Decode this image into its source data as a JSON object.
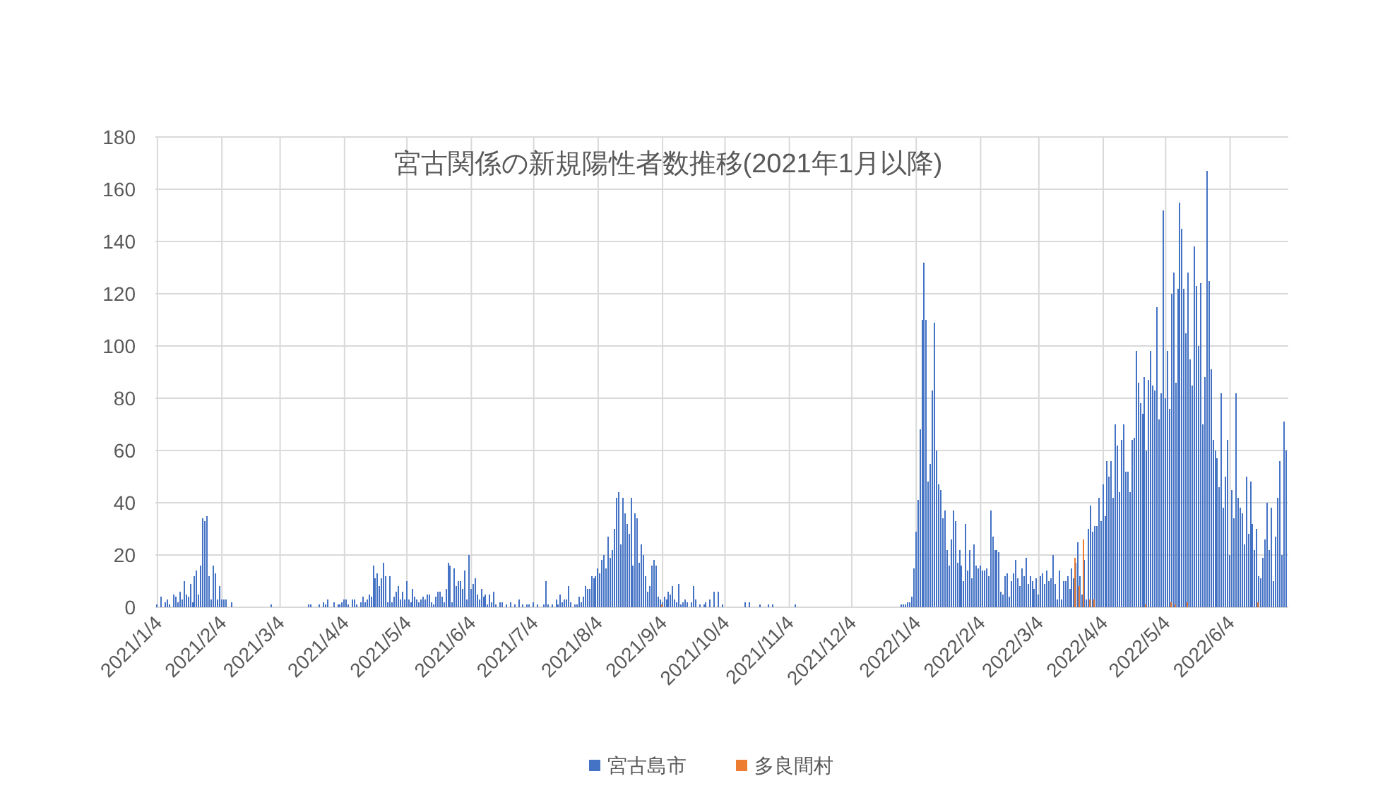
{
  "chart_data": {
    "type": "bar",
    "title": "宮古関係の新規陽性者数推移(2021年1月以降)",
    "xlim": [
      "2021-01-03",
      "2022-07-02"
    ],
    "xticks": [
      {
        "value": "2021-01-04",
        "label": "2021/1/4"
      },
      {
        "value": "2021-02-04",
        "label": "2021/2/4"
      },
      {
        "value": "2021-03-04",
        "label": "2021/3/4"
      },
      {
        "value": "2021-04-04",
        "label": "2021/4/4"
      },
      {
        "value": "2021-05-04",
        "label": "2021/5/4"
      },
      {
        "value": "2021-06-04",
        "label": "2021/6/4"
      },
      {
        "value": "2021-07-04",
        "label": "2021/7/4"
      },
      {
        "value": "2021-08-04",
        "label": "2021/8/4"
      },
      {
        "value": "2021-09-04",
        "label": "2021/9/4"
      },
      {
        "value": "2021-10-04",
        "label": "2021/10/4"
      },
      {
        "value": "2021-11-04",
        "label": "2021/11/4"
      },
      {
        "value": "2021-12-04",
        "label": "2021/12/4"
      },
      {
        "value": "2022-01-04",
        "label": "2022/1/4"
      },
      {
        "value": "2022-02-04",
        "label": "2022/2/4"
      },
      {
        "value": "2022-03-04",
        "label": "2022/3/4"
      },
      {
        "value": "2022-04-04",
        "label": "2022/4/4"
      },
      {
        "value": "2022-05-04",
        "label": "2022/5/4"
      },
      {
        "value": "2022-06-04",
        "label": "2022/6/4"
      }
    ],
    "ylim": [
      0,
      180
    ],
    "yticks": [
      0,
      20,
      40,
      60,
      80,
      100,
      120,
      140,
      160,
      180
    ],
    "grid": true,
    "legend": "bottom",
    "series": [
      {
        "name": "宮古島市",
        "color": "#4472c4",
        "x": [
          "2021-01-04",
          "2021-01-06",
          "2021-01-08",
          "2021-01-09",
          "2021-01-10",
          "2021-01-12",
          "2021-01-13",
          "2021-01-14",
          "2021-01-15",
          "2021-01-16",
          "2021-01-17",
          "2021-01-18",
          "2021-01-19",
          "2021-01-20",
          "2021-01-21",
          "2021-01-22",
          "2021-01-23",
          "2021-01-24",
          "2021-01-25",
          "2021-01-26",
          "2021-01-27",
          "2021-01-28",
          "2021-01-29",
          "2021-01-30",
          "2021-01-31",
          "2021-02-01",
          "2021-02-02",
          "2021-02-03",
          "2021-02-04",
          "2021-02-05",
          "2021-02-06",
          "2021-02-09",
          "2021-02-28",
          "2021-03-18",
          "2021-03-19",
          "2021-03-23",
          "2021-03-25",
          "2021-03-26",
          "2021-03-27",
          "2021-03-30",
          "2021-04-01",
          "2021-04-02",
          "2021-04-03",
          "2021-04-04",
          "2021-04-05",
          "2021-04-06",
          "2021-04-08",
          "2021-04-09",
          "2021-04-10",
          "2021-04-12",
          "2021-04-13",
          "2021-04-14",
          "2021-04-15",
          "2021-04-16",
          "2021-04-17",
          "2021-04-18",
          "2021-04-19",
          "2021-04-20",
          "2021-04-21",
          "2021-04-22",
          "2021-04-23",
          "2021-04-24",
          "2021-04-25",
          "2021-04-26",
          "2021-04-27",
          "2021-04-28",
          "2021-04-29",
          "2021-04-30",
          "2021-05-01",
          "2021-05-02",
          "2021-05-03",
          "2021-05-04",
          "2021-05-05",
          "2021-05-06",
          "2021-05-07",
          "2021-05-08",
          "2021-05-09",
          "2021-05-10",
          "2021-05-11",
          "2021-05-12",
          "2021-05-13",
          "2021-05-14",
          "2021-05-15",
          "2021-05-16",
          "2021-05-17",
          "2021-05-18",
          "2021-05-19",
          "2021-05-20",
          "2021-05-21",
          "2021-05-22",
          "2021-05-23",
          "2021-05-24",
          "2021-05-25",
          "2021-05-26",
          "2021-05-27",
          "2021-05-28",
          "2021-05-29",
          "2021-05-30",
          "2021-05-31",
          "2021-06-01",
          "2021-06-02",
          "2021-06-03",
          "2021-06-04",
          "2021-06-05",
          "2021-06-06",
          "2021-06-07",
          "2021-06-08",
          "2021-06-09",
          "2021-06-10",
          "2021-06-11",
          "2021-06-12",
          "2021-06-13",
          "2021-06-14",
          "2021-06-15",
          "2021-06-16",
          "2021-06-18",
          "2021-06-19",
          "2021-06-21",
          "2021-06-23",
          "2021-06-25",
          "2021-06-27",
          "2021-06-29",
          "2021-07-01",
          "2021-07-02",
          "2021-07-04",
          "2021-07-06",
          "2021-07-09",
          "2021-07-10",
          "2021-07-11",
          "2021-07-13",
          "2021-07-15",
          "2021-07-16",
          "2021-07-17",
          "2021-07-18",
          "2021-07-19",
          "2021-07-20",
          "2021-07-21",
          "2021-07-22",
          "2021-07-24",
          "2021-07-25",
          "2021-07-26",
          "2021-07-27",
          "2021-07-28",
          "2021-07-29",
          "2021-07-30",
          "2021-07-31",
          "2021-08-01",
          "2021-08-02",
          "2021-08-03",
          "2021-08-04",
          "2021-08-05",
          "2021-08-06",
          "2021-08-07",
          "2021-08-08",
          "2021-08-09",
          "2021-08-10",
          "2021-08-11",
          "2021-08-12",
          "2021-08-13",
          "2021-08-14",
          "2021-08-15",
          "2021-08-16",
          "2021-08-17",
          "2021-08-18",
          "2021-08-19",
          "2021-08-20",
          "2021-08-21",
          "2021-08-22",
          "2021-08-23",
          "2021-08-24",
          "2021-08-25",
          "2021-08-26",
          "2021-08-27",
          "2021-08-28",
          "2021-08-29",
          "2021-08-30",
          "2021-08-31",
          "2021-09-01",
          "2021-09-02",
          "2021-09-03",
          "2021-09-04",
          "2021-09-05",
          "2021-09-06",
          "2021-09-07",
          "2021-09-08",
          "2021-09-09",
          "2021-09-10",
          "2021-09-11",
          "2021-09-12",
          "2021-09-13",
          "2021-09-14",
          "2021-09-15",
          "2021-09-16",
          "2021-09-18",
          "2021-09-19",
          "2021-09-20",
          "2021-09-22",
          "2021-09-24",
          "2021-09-25",
          "2021-09-27",
          "2021-09-29",
          "2021-10-01",
          "2021-10-03",
          "2021-10-14",
          "2021-10-16",
          "2021-10-21",
          "2021-10-25",
          "2021-10-27",
          "2021-11-07",
          "2021-12-28",
          "2021-12-29",
          "2021-12-30",
          "2021-12-31",
          "2022-01-01",
          "2022-01-02",
          "2022-01-03",
          "2022-01-04",
          "2022-01-05",
          "2022-01-06",
          "2022-01-07",
          "2022-01-08",
          "2022-01-09",
          "2022-01-10",
          "2022-01-11",
          "2022-01-12",
          "2022-01-13",
          "2022-01-14",
          "2022-01-15",
          "2022-01-16",
          "2022-01-17",
          "2022-01-18",
          "2022-01-19",
          "2022-01-20",
          "2022-01-21",
          "2022-01-22",
          "2022-01-23",
          "2022-01-24",
          "2022-01-25",
          "2022-01-26",
          "2022-01-27",
          "2022-01-28",
          "2022-01-29",
          "2022-01-30",
          "2022-01-31",
          "2022-02-01",
          "2022-02-02",
          "2022-02-03",
          "2022-02-04",
          "2022-02-05",
          "2022-02-06",
          "2022-02-07",
          "2022-02-08",
          "2022-02-09",
          "2022-02-10",
          "2022-02-11",
          "2022-02-12",
          "2022-02-13",
          "2022-02-14",
          "2022-02-15",
          "2022-02-16",
          "2022-02-17",
          "2022-02-18",
          "2022-02-19",
          "2022-02-20",
          "2022-02-21",
          "2022-02-22",
          "2022-02-23",
          "2022-02-24",
          "2022-02-25",
          "2022-02-26",
          "2022-02-27",
          "2022-02-28",
          "2022-03-01",
          "2022-03-02",
          "2022-03-03",
          "2022-03-04",
          "2022-03-05",
          "2022-03-06",
          "2022-03-07",
          "2022-03-08",
          "2022-03-09",
          "2022-03-10",
          "2022-03-11",
          "2022-03-12",
          "2022-03-13",
          "2022-03-14",
          "2022-03-15",
          "2022-03-16",
          "2022-03-17",
          "2022-03-18",
          "2022-03-19",
          "2022-03-20",
          "2022-03-21",
          "2022-03-22",
          "2022-03-23",
          "2022-03-24",
          "2022-03-25",
          "2022-03-26",
          "2022-03-27",
          "2022-03-28",
          "2022-03-29",
          "2022-03-30",
          "2022-03-31",
          "2022-04-01",
          "2022-04-02",
          "2022-04-03",
          "2022-04-04",
          "2022-04-05",
          "2022-04-06",
          "2022-04-07",
          "2022-04-08",
          "2022-04-09",
          "2022-04-10",
          "2022-04-11",
          "2022-04-12",
          "2022-04-13",
          "2022-04-14",
          "2022-04-15",
          "2022-04-16",
          "2022-04-17",
          "2022-04-18",
          "2022-04-19",
          "2022-04-20",
          "2022-04-21",
          "2022-04-22",
          "2022-04-23",
          "2022-04-24",
          "2022-04-25",
          "2022-04-26",
          "2022-04-27",
          "2022-04-28",
          "2022-04-29",
          "2022-04-30",
          "2022-05-01",
          "2022-05-02",
          "2022-05-03",
          "2022-05-04",
          "2022-05-05",
          "2022-05-06",
          "2022-05-07",
          "2022-05-08",
          "2022-05-09",
          "2022-05-10",
          "2022-05-11",
          "2022-05-12",
          "2022-05-13",
          "2022-05-14",
          "2022-05-15",
          "2022-05-16",
          "2022-05-17",
          "2022-05-18",
          "2022-05-19",
          "2022-05-20",
          "2022-05-21",
          "2022-05-22",
          "2022-05-23",
          "2022-05-24",
          "2022-05-25",
          "2022-05-26",
          "2022-05-27",
          "2022-05-28",
          "2022-05-29",
          "2022-05-30",
          "2022-05-31",
          "2022-06-01",
          "2022-06-02",
          "2022-06-03",
          "2022-06-04",
          "2022-06-05",
          "2022-06-06",
          "2022-06-07",
          "2022-06-08",
          "2022-06-09",
          "2022-06-10",
          "2022-06-11",
          "2022-06-12",
          "2022-06-13",
          "2022-06-14",
          "2022-06-15",
          "2022-06-16",
          "2022-06-17",
          "2022-06-18",
          "2022-06-19",
          "2022-06-20",
          "2022-06-21",
          "2022-06-22",
          "2022-06-23",
          "2022-06-24",
          "2022-06-25",
          "2022-06-26",
          "2022-06-27",
          "2022-06-28",
          "2022-06-29",
          "2022-06-30",
          "2022-07-01"
        ],
        "values": [
          1,
          4,
          2,
          3,
          1,
          5,
          4,
          2,
          6,
          3,
          10,
          5,
          4,
          9,
          2,
          12,
          14,
          5,
          16,
          34,
          33,
          35,
          12,
          3,
          16,
          13,
          3,
          8,
          3,
          3,
          3,
          2,
          1,
          1,
          1,
          1,
          2,
          1,
          3,
          2,
          1,
          1,
          2,
          3,
          3,
          1,
          3,
          3,
          1,
          2,
          4,
          2,
          3,
          5,
          4,
          16,
          11,
          13,
          8,
          11,
          17,
          12,
          2,
          12,
          2,
          4,
          6,
          8,
          3,
          6,
          3,
          10,
          3,
          2,
          7,
          4,
          3,
          2,
          3,
          4,
          3,
          5,
          5,
          2,
          1,
          4,
          6,
          6,
          4,
          2,
          7,
          17,
          16,
          2,
          15,
          8,
          10,
          10,
          7,
          14,
          3,
          20,
          7,
          9,
          11,
          5,
          3,
          7,
          4,
          5,
          1,
          5,
          2,
          6,
          1,
          2,
          2,
          1,
          2,
          1,
          3,
          1,
          1,
          1,
          2,
          1,
          1,
          10,
          1,
          1,
          3,
          1,
          5,
          2,
          3,
          3,
          8,
          2,
          1,
          1,
          4,
          2,
          4,
          8,
          7,
          7,
          12,
          11,
          12,
          15,
          13,
          18,
          20,
          15,
          27,
          19,
          22,
          30,
          42,
          44,
          24,
          42,
          36,
          32,
          28,
          42,
          16,
          36,
          34,
          17,
          24,
          20,
          12,
          6,
          8,
          16,
          18,
          16,
          4,
          3,
          2,
          4,
          3,
          6,
          5,
          8,
          3,
          2,
          9,
          1,
          2,
          3,
          2,
          2,
          8,
          3,
          1,
          1,
          2,
          3,
          6,
          6,
          1,
          2,
          2,
          1,
          1,
          1,
          1,
          1,
          1,
          1,
          2,
          2,
          4,
          15,
          29,
          41,
          68,
          110,
          132,
          110,
          48,
          55,
          83,
          109,
          60,
          47,
          45,
          34,
          37,
          22,
          16,
          26,
          37,
          33,
          17,
          22,
          16,
          10,
          32,
          14,
          22,
          11,
          24,
          16,
          15,
          16,
          14,
          14,
          15,
          12,
          37,
          27,
          22,
          22,
          21,
          6,
          5,
          12,
          13,
          4,
          10,
          13,
          18,
          11,
          8,
          15,
          12,
          19,
          9,
          12,
          10,
          7,
          11,
          5,
          12,
          13,
          9,
          14,
          10,
          11,
          20,
          9,
          3,
          14,
          3,
          10,
          10,
          12,
          7,
          15,
          11,
          17,
          25,
          12,
          5,
          18,
          3,
          30,
          39,
          29,
          31,
          31,
          42,
          33,
          47,
          35,
          56,
          50,
          56,
          42,
          70,
          62,
          44,
          64,
          70,
          52,
          52,
          44,
          64,
          65,
          98,
          86,
          78,
          74,
          88,
          60,
          87,
          98,
          85,
          83,
          115,
          72,
          82,
          152,
          80,
          98,
          76,
          120,
          128,
          86,
          122,
          155,
          145,
          122,
          105,
          128,
          95,
          85,
          138,
          123,
          100,
          124,
          70,
          88,
          167,
          125,
          91,
          64,
          60,
          57,
          46,
          82,
          38,
          50,
          64,
          20,
          45,
          34,
          82,
          42,
          38,
          36,
          24,
          50,
          28,
          48,
          32,
          22,
          30,
          12,
          11,
          19,
          26,
          40,
          22,
          38,
          10,
          27,
          42,
          56,
          20,
          71,
          60
        ]
      },
      {
        "name": "多良間村",
        "color": "#ed7d31",
        "x": [
          "2021-09-03",
          "2022-03-21",
          "2022-03-23",
          "2022-03-25",
          "2022-03-28",
          "2022-03-30",
          "2022-04-24",
          "2022-05-06",
          "2022-05-08",
          "2022-05-14",
          "2022-06-17"
        ],
        "values": [
          1,
          19,
          8,
          26,
          3,
          3,
          1,
          2,
          1,
          2,
          2
        ]
      }
    ]
  }
}
